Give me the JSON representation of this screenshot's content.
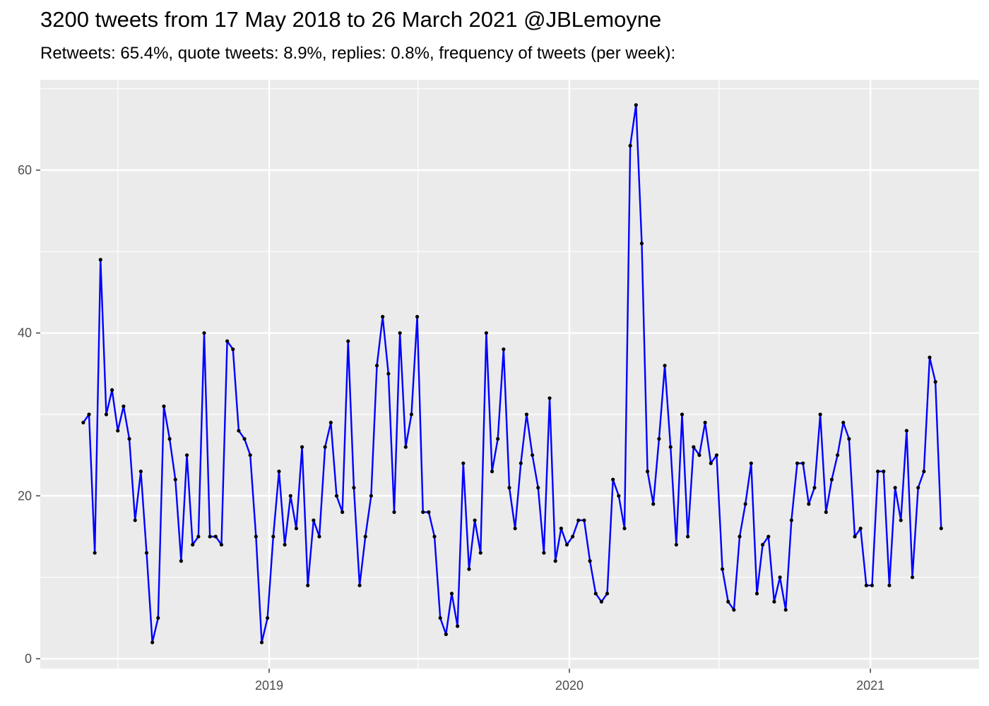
{
  "chart_data": {
    "type": "line",
    "title": "3200 tweets from 17 May 2018 to 26 March 2021 @JBLemoyne",
    "subtitle": "Retweets: 65.4%, quote tweets: 8.9%, replies: 0.8%, frequency of tweets (per week):",
    "xlabel": "",
    "ylabel": "",
    "x_ticks": [
      "2019",
      "2020",
      "2021"
    ],
    "y_ticks": [
      "0",
      "20",
      "40",
      "60"
    ],
    "ylim": [
      0,
      70
    ],
    "grid": true,
    "line_color": "#0000ff",
    "point_color": "#000000",
    "panel_background": "#ebebeb",
    "series": [
      {
        "x_start": "2018-05-20",
        "x_step_days": 7,
        "values": [
          29,
          30,
          13,
          49,
          30,
          33,
          28,
          31,
          27,
          17,
          23,
          13,
          2,
          5,
          31,
          27,
          22,
          12,
          25,
          14,
          15,
          40,
          15,
          15,
          14,
          39,
          38,
          28,
          27,
          25,
          15,
          2,
          5,
          15,
          23,
          14,
          20,
          16,
          26,
          9,
          17,
          15,
          26,
          29,
          20,
          18,
          39,
          21,
          9,
          15,
          20,
          36,
          42,
          35,
          18,
          40,
          26,
          30,
          42,
          18,
          18,
          15,
          5,
          3,
          8,
          4,
          24,
          11,
          17,
          13,
          40,
          23,
          27,
          38,
          21,
          16,
          24,
          30,
          25,
          21,
          13,
          32,
          12,
          16,
          14,
          15,
          17,
          17,
          12,
          8,
          7,
          8,
          22,
          20,
          16,
          63,
          68,
          51,
          23,
          19,
          27,
          36,
          26,
          14,
          30,
          15,
          26,
          25,
          29,
          24,
          25,
          11,
          7,
          6,
          15,
          19,
          24,
          8,
          14,
          15,
          7,
          10,
          6,
          17,
          24,
          24,
          19,
          21,
          30,
          18,
          22,
          25,
          29,
          27,
          15,
          16,
          9,
          9,
          23,
          23,
          9,
          21,
          17,
          28,
          10,
          21,
          23,
          37,
          34,
          16
        ]
      }
    ]
  }
}
